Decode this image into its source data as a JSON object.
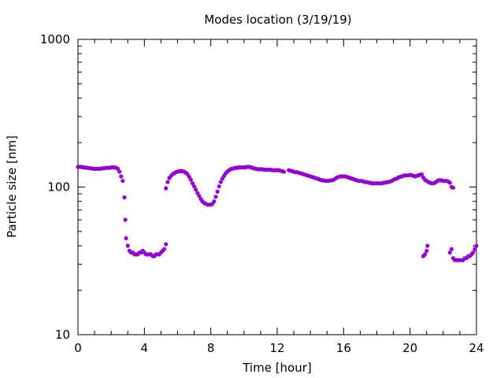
{
  "chart_data": {
    "type": "scatter",
    "title": "Modes location (3/19/19)",
    "xlabel": "Time [hour]",
    "ylabel": "Particle size [nm]",
    "xlim": [
      0,
      24
    ],
    "ylim": [
      10,
      1000
    ],
    "yscale": "log",
    "grid": false,
    "legend": "none",
    "marker_color": "#9400d3",
    "x_ticks": [
      0,
      4,
      8,
      12,
      16,
      20,
      24
    ],
    "x_tick_labels": [
      "0",
      "4",
      "8",
      "12",
      "16",
      "20",
      "24"
    ],
    "y_ticks": [
      10,
      100,
      1000
    ],
    "y_tick_labels": [
      "10",
      "100",
      "1000"
    ],
    "series": [
      {
        "points": [
          [
            0.0,
            137
          ],
          [
            0.1,
            137
          ],
          [
            0.2,
            137
          ],
          [
            0.3,
            136
          ],
          [
            0.4,
            136
          ],
          [
            0.5,
            135
          ],
          [
            0.6,
            135
          ],
          [
            0.7,
            134
          ],
          [
            0.8,
            134
          ],
          [
            0.9,
            133
          ],
          [
            1.0,
            133
          ],
          [
            1.1,
            133
          ],
          [
            1.2,
            133
          ],
          [
            1.3,
            133
          ],
          [
            1.4,
            133
          ],
          [
            1.5,
            134
          ],
          [
            1.6,
            134
          ],
          [
            1.7,
            135
          ],
          [
            1.8,
            135
          ],
          [
            1.9,
            135
          ],
          [
            2.0,
            136
          ],
          [
            2.1,
            136
          ],
          [
            2.2,
            136
          ],
          [
            2.3,
            135
          ],
          [
            2.4,
            133
          ],
          [
            2.5,
            127
          ],
          [
            2.6,
            118
          ],
          [
            2.7,
            110
          ],
          [
            2.8,
            85
          ],
          [
            2.85,
            60
          ],
          [
            2.9,
            45
          ],
          [
            3.0,
            40
          ],
          [
            3.1,
            37
          ],
          [
            3.2,
            36
          ],
          [
            3.3,
            36
          ],
          [
            3.4,
            35
          ],
          [
            3.5,
            35
          ],
          [
            3.6,
            35
          ],
          [
            3.7,
            36
          ],
          [
            3.8,
            36
          ],
          [
            3.9,
            37
          ],
          [
            4.0,
            36
          ],
          [
            4.1,
            35
          ],
          [
            4.2,
            35
          ],
          [
            4.3,
            35
          ],
          [
            4.4,
            35
          ],
          [
            4.5,
            34
          ],
          [
            4.6,
            34
          ],
          [
            4.7,
            35
          ],
          [
            4.8,
            35
          ],
          [
            4.9,
            35
          ],
          [
            5.0,
            36
          ],
          [
            5.1,
            37
          ],
          [
            5.2,
            38
          ],
          [
            5.3,
            41
          ],
          [
            5.3,
            98
          ],
          [
            5.4,
            108
          ],
          [
            5.5,
            115
          ],
          [
            5.6,
            119
          ],
          [
            5.7,
            122
          ],
          [
            5.8,
            124
          ],
          [
            5.9,
            126
          ],
          [
            6.0,
            127
          ],
          [
            6.1,
            128
          ],
          [
            6.2,
            128
          ],
          [
            6.3,
            128
          ],
          [
            6.4,
            127
          ],
          [
            6.5,
            125
          ],
          [
            6.6,
            122
          ],
          [
            6.7,
            117
          ],
          [
            6.8,
            112
          ],
          [
            6.9,
            106
          ],
          [
            7.0,
            101
          ],
          [
            7.1,
            96
          ],
          [
            7.2,
            91
          ],
          [
            7.3,
            87
          ],
          [
            7.4,
            83
          ],
          [
            7.5,
            80
          ],
          [
            7.6,
            78
          ],
          [
            7.7,
            77
          ],
          [
            7.8,
            76
          ],
          [
            7.9,
            76
          ],
          [
            8.0,
            76
          ],
          [
            8.1,
            77
          ],
          [
            8.2,
            80
          ],
          [
            8.3,
            86
          ],
          [
            8.4,
            93
          ],
          [
            8.5,
            101
          ],
          [
            8.6,
            108
          ],
          [
            8.7,
            114
          ],
          [
            8.8,
            119
          ],
          [
            8.9,
            124
          ],
          [
            9.0,
            127
          ],
          [
            9.1,
            130
          ],
          [
            9.2,
            132
          ],
          [
            9.3,
            133
          ],
          [
            9.4,
            134
          ],
          [
            9.5,
            135
          ],
          [
            9.6,
            135
          ],
          [
            9.7,
            136
          ],
          [
            9.8,
            136
          ],
          [
            9.9,
            136
          ],
          [
            10.0,
            136
          ],
          [
            10.1,
            136
          ],
          [
            10.2,
            137
          ],
          [
            10.3,
            137
          ],
          [
            10.4,
            136
          ],
          [
            10.5,
            135
          ],
          [
            10.6,
            134
          ],
          [
            10.7,
            133
          ],
          [
            10.8,
            132
          ],
          [
            10.9,
            132
          ],
          [
            11.0,
            132
          ],
          [
            11.1,
            132
          ],
          [
            11.2,
            131
          ],
          [
            11.3,
            131
          ],
          [
            11.4,
            131
          ],
          [
            11.5,
            131
          ],
          [
            11.6,
            131
          ],
          [
            11.7,
            130
          ],
          [
            11.8,
            130
          ],
          [
            11.9,
            130
          ],
          [
            12.0,
            130
          ],
          [
            12.1,
            130
          ],
          [
            12.2,
            129
          ],
          [
            12.3,
            128
          ],
          [
            12.4,
            127
          ],
          [
            12.7,
            130
          ],
          [
            12.8,
            129
          ],
          [
            12.9,
            128
          ],
          [
            13.0,
            127
          ],
          [
            13.1,
            126
          ],
          [
            13.2,
            126
          ],
          [
            13.3,
            125
          ],
          [
            13.4,
            124
          ],
          [
            13.5,
            123
          ],
          [
            13.6,
            122
          ],
          [
            13.7,
            121
          ],
          [
            13.8,
            120
          ],
          [
            13.9,
            119
          ],
          [
            14.0,
            118
          ],
          [
            14.1,
            117
          ],
          [
            14.2,
            116
          ],
          [
            14.3,
            115
          ],
          [
            14.4,
            114
          ],
          [
            14.5,
            113
          ],
          [
            14.6,
            112
          ],
          [
            14.7,
            111
          ],
          [
            14.8,
            111
          ],
          [
            14.9,
            110
          ],
          [
            15.0,
            110
          ],
          [
            15.1,
            110
          ],
          [
            15.2,
            111
          ],
          [
            15.3,
            111
          ],
          [
            15.4,
            112
          ],
          [
            15.5,
            114
          ],
          [
            15.6,
            116
          ],
          [
            15.7,
            117
          ],
          [
            15.8,
            118
          ],
          [
            15.9,
            118
          ],
          [
            16.0,
            118
          ],
          [
            16.1,
            118
          ],
          [
            16.2,
            117
          ],
          [
            16.3,
            116
          ],
          [
            16.4,
            115
          ],
          [
            16.5,
            114
          ],
          [
            16.6,
            113
          ],
          [
            16.7,
            112
          ],
          [
            16.8,
            111
          ],
          [
            16.9,
            110
          ],
          [
            17.0,
            110
          ],
          [
            17.1,
            110
          ],
          [
            17.2,
            109
          ],
          [
            17.3,
            108
          ],
          [
            17.4,
            108
          ],
          [
            17.5,
            107
          ],
          [
            17.6,
            107
          ],
          [
            17.7,
            106
          ],
          [
            17.8,
            106
          ],
          [
            17.9,
            106
          ],
          [
            18.0,
            106
          ],
          [
            18.1,
            106
          ],
          [
            18.2,
            106
          ],
          [
            18.3,
            106
          ],
          [
            18.4,
            107
          ],
          [
            18.5,
            107
          ],
          [
            18.6,
            108
          ],
          [
            18.7,
            108
          ],
          [
            18.8,
            109
          ],
          [
            18.9,
            110
          ],
          [
            19.0,
            112
          ],
          [
            19.1,
            113
          ],
          [
            19.2,
            114
          ],
          [
            19.3,
            116
          ],
          [
            19.4,
            117
          ],
          [
            19.5,
            118
          ],
          [
            19.6,
            119
          ],
          [
            19.7,
            120
          ],
          [
            19.8,
            120
          ],
          [
            19.9,
            120
          ],
          [
            20.0,
            121
          ],
          [
            20.1,
            120
          ],
          [
            20.2,
            119
          ],
          [
            20.3,
            118
          ],
          [
            20.4,
            119
          ],
          [
            20.5,
            120
          ],
          [
            20.6,
            121
          ],
          [
            20.7,
            122
          ],
          [
            20.8,
            116
          ],
          [
            20.9,
            112
          ],
          [
            21.0,
            110
          ],
          [
            21.1,
            108
          ],
          [
            21.2,
            107
          ],
          [
            21.3,
            106
          ],
          [
            21.4,
            106
          ],
          [
            21.5,
            107
          ],
          [
            21.6,
            109
          ],
          [
            21.7,
            111
          ],
          [
            21.8,
            111
          ],
          [
            21.9,
            111
          ],
          [
            22.0,
            110
          ],
          [
            22.1,
            110
          ],
          [
            22.2,
            110
          ],
          [
            22.3,
            109
          ],
          [
            22.4,
            107
          ],
          [
            22.5,
            100
          ],
          [
            22.6,
            99
          ],
          [
            20.8,
            34
          ],
          [
            20.9,
            35
          ],
          [
            21.0,
            37
          ],
          [
            21.05,
            40
          ],
          [
            22.4,
            36
          ],
          [
            22.5,
            38
          ],
          [
            22.6,
            33
          ],
          [
            22.7,
            32
          ],
          [
            22.8,
            32
          ],
          [
            22.9,
            32
          ],
          [
            23.0,
            32
          ],
          [
            23.1,
            32
          ],
          [
            23.2,
            32
          ],
          [
            23.3,
            33
          ],
          [
            23.4,
            33
          ],
          [
            23.5,
            34
          ],
          [
            23.6,
            34
          ],
          [
            23.7,
            35
          ],
          [
            23.8,
            36
          ],
          [
            23.9,
            38
          ],
          [
            24.0,
            40
          ]
        ]
      }
    ]
  }
}
